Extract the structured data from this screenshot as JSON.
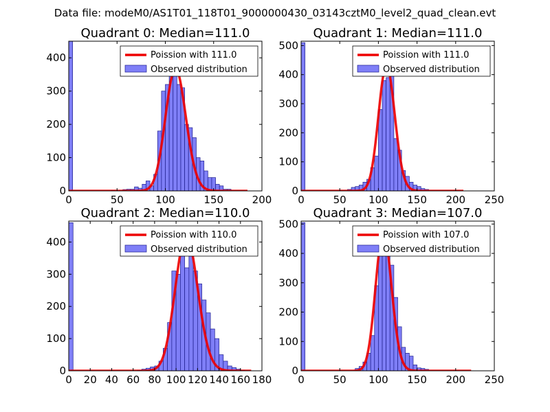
{
  "chart_data": {
    "type": "bar",
    "title": "Data file: modeM0/AS1T01_118T01_9000000430_03143cztM0_level2_quad_clean.evt",
    "panels": [
      {
        "title": "Quadrant 0: Median=111.0",
        "xlim": [
          0,
          200
        ],
        "ylim": [
          0,
          450
        ],
        "xticks": [
          0,
          50,
          100,
          150,
          200
        ],
        "yticks": [
          0,
          100,
          200,
          300,
          400
        ],
        "median": 111.0,
        "legend": {
          "poisson": "Poission with 111.0",
          "observed": "Observed distribution"
        },
        "bin_width": 4,
        "bins": [
          [
            0,
            450
          ],
          [
            44,
            2
          ],
          [
            56,
            4
          ],
          [
            60,
            5
          ],
          [
            64,
            5
          ],
          [
            68,
            12
          ],
          [
            72,
            8
          ],
          [
            76,
            20
          ],
          [
            80,
            30
          ],
          [
            84,
            15
          ],
          [
            88,
            50
          ],
          [
            92,
            180
          ],
          [
            96,
            300
          ],
          [
            100,
            320
          ],
          [
            104,
            350
          ],
          [
            108,
            350
          ],
          [
            112,
            320
          ],
          [
            116,
            310
          ],
          [
            120,
            200
          ],
          [
            124,
            190
          ],
          [
            128,
            160
          ],
          [
            132,
            100
          ],
          [
            136,
            90
          ],
          [
            140,
            60
          ],
          [
            144,
            40
          ],
          [
            148,
            40
          ],
          [
            152,
            20
          ],
          [
            156,
            15
          ],
          [
            160,
            5
          ],
          [
            164,
            5
          ]
        ],
        "curve_range": [
          0,
          185
        ]
      },
      {
        "title": "Quadrant 1: Median=111.0",
        "xlim": [
          0,
          250
        ],
        "ylim": [
          0,
          515
        ],
        "xticks": [
          0,
          50,
          100,
          150,
          200,
          250
        ],
        "yticks": [
          0,
          100,
          200,
          300,
          400,
          500
        ],
        "median": 111.0,
        "legend": {
          "poisson": "Poission with 111.0",
          "observed": "Observed distribution"
        },
        "bin_width": 5,
        "bins": [
          [
            0,
            510
          ],
          [
            60,
            5
          ],
          [
            65,
            12
          ],
          [
            70,
            15
          ],
          [
            75,
            20
          ],
          [
            80,
            30
          ],
          [
            85,
            40
          ],
          [
            90,
            80
          ],
          [
            95,
            120
          ],
          [
            100,
            280
          ],
          [
            105,
            380
          ],
          [
            110,
            390
          ],
          [
            115,
            410
          ],
          [
            120,
            180
          ],
          [
            125,
            140
          ],
          [
            130,
            70
          ],
          [
            135,
            50
          ],
          [
            140,
            30
          ],
          [
            145,
            20
          ],
          [
            150,
            15
          ],
          [
            155,
            8
          ],
          [
            160,
            5
          ]
        ],
        "curve_range": [
          0,
          210
        ]
      },
      {
        "title": "Quadrant 2: Median=110.0",
        "xlim": [
          0,
          180
        ],
        "ylim": [
          0,
          465
        ],
        "xticks": [
          0,
          20,
          40,
          60,
          80,
          100,
          120,
          140,
          160,
          180
        ],
        "yticks": [
          0,
          100,
          200,
          300,
          400
        ],
        "median": 110.0,
        "legend": {
          "poisson": "Poission with 110.0",
          "observed": "Observed distribution"
        },
        "bin_width": 4,
        "bins": [
          [
            0,
            460
          ],
          [
            64,
            2
          ],
          [
            68,
            5
          ],
          [
            72,
            8
          ],
          [
            76,
            12
          ],
          [
            80,
            15
          ],
          [
            84,
            30
          ],
          [
            88,
            70
          ],
          [
            92,
            150
          ],
          [
            96,
            310
          ],
          [
            100,
            300
          ],
          [
            104,
            400
          ],
          [
            108,
            320
          ],
          [
            112,
            380
          ],
          [
            116,
            310
          ],
          [
            120,
            270
          ],
          [
            124,
            220
          ],
          [
            128,
            180
          ],
          [
            132,
            130
          ],
          [
            136,
            100
          ],
          [
            140,
            50
          ],
          [
            144,
            30
          ],
          [
            148,
            15
          ],
          [
            152,
            10
          ],
          [
            156,
            5
          ],
          [
            160,
            2
          ]
        ],
        "curve_range": [
          0,
          170
        ]
      },
      {
        "title": "Quadrant 3: Median=107.0",
        "xlim": [
          0,
          250
        ],
        "ylim": [
          0,
          510
        ],
        "xticks": [
          0,
          50,
          100,
          150,
          200,
          250
        ],
        "yticks": [
          0,
          100,
          200,
          300,
          400,
          500
        ],
        "median": 107.0,
        "legend": {
          "poisson": "Poission with 107.0",
          "observed": "Observed distribution"
        },
        "bin_width": 5,
        "bins": [
          [
            0,
            505
          ],
          [
            70,
            8
          ],
          [
            75,
            15
          ],
          [
            80,
            30
          ],
          [
            85,
            60
          ],
          [
            90,
            120
          ],
          [
            95,
            290
          ],
          [
            100,
            440
          ],
          [
            105,
            450
          ],
          [
            110,
            400
          ],
          [
            115,
            360
          ],
          [
            120,
            250
          ],
          [
            125,
            150
          ],
          [
            130,
            80
          ],
          [
            135,
            60
          ],
          [
            140,
            50
          ],
          [
            145,
            20
          ],
          [
            150,
            10
          ],
          [
            155,
            8
          ],
          [
            160,
            5
          ]
        ],
        "curve_range": [
          0,
          220
        ]
      }
    ]
  }
}
